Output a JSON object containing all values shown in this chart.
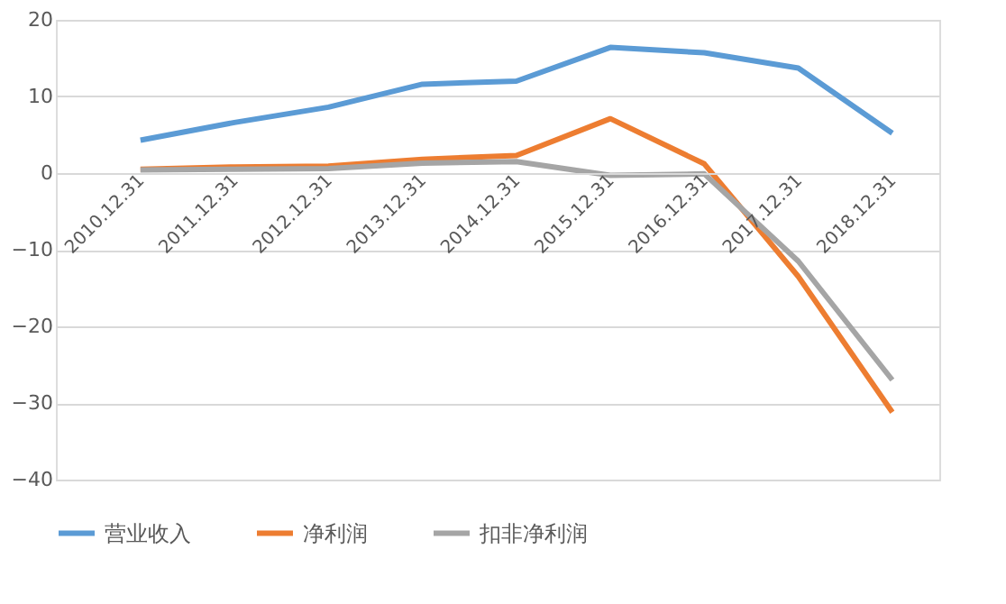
{
  "chart_data": {
    "type": "line",
    "categories": [
      "2010.12.31",
      "2011.12.31",
      "2012.12.31",
      "2013.12.31",
      "2014.12.31",
      "2015.12.31",
      "2016.12.31",
      "2017.12.31",
      "2018.12.31"
    ],
    "series": [
      {
        "name": "营业收入",
        "color": "#5b9bd5",
        "values": [
          4.3,
          6.6,
          8.6,
          11.6,
          12.0,
          16.4,
          15.7,
          13.7,
          5.2
        ]
      },
      {
        "name": "净利润",
        "color": "#ed7d31",
        "values": [
          0.5,
          0.8,
          0.9,
          1.8,
          2.3,
          7.1,
          1.2,
          -13.5,
          -31.2
        ]
      },
      {
        "name": "扣非净利润",
        "color": "#a5a5a5",
        "values": [
          0.4,
          0.5,
          0.6,
          1.3,
          1.5,
          -0.3,
          -0.1,
          -11.5,
          -27
        ]
      }
    ],
    "ylim": [
      -40,
      20
    ],
    "yticks": [
      -40,
      -30,
      -20,
      -10,
      0,
      10,
      20
    ],
    "grid": "y",
    "legend": "bottom",
    "marker": "none",
    "line_style": "solid"
  }
}
